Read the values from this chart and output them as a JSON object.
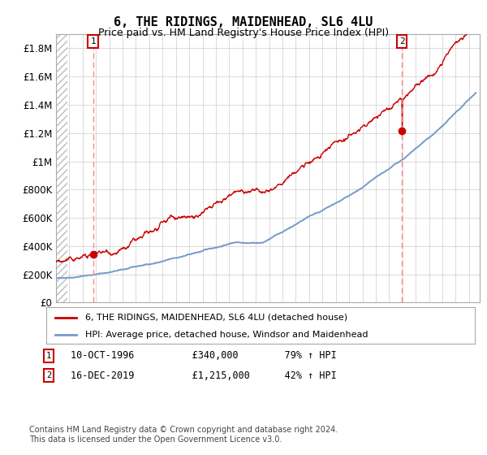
{
  "title": "6, THE RIDINGS, MAIDENHEAD, SL6 4LU",
  "subtitle": "Price paid vs. HM Land Registry's House Price Index (HPI)",
  "ylim": [
    0,
    1900000
  ],
  "yticks": [
    0,
    200000,
    400000,
    600000,
    800000,
    1000000,
    1200000,
    1400000,
    1600000,
    1800000
  ],
  "ytick_labels": [
    "£0",
    "£200K",
    "£400K",
    "£600K",
    "£800K",
    "£1M",
    "£1.2M",
    "£1.4M",
    "£1.6M",
    "£1.8M"
  ],
  "hpi_color": "#7799cc",
  "price_color": "#cc0000",
  "marker_color": "#cc0000",
  "dashed_line_color": "#ff8888",
  "purchase1_date_num": 1996.78,
  "purchase1_price": 340000,
  "purchase2_date_num": 2019.96,
  "purchase2_price": 1215000,
  "legend_line1": "6, THE RIDINGS, MAIDENHEAD, SL6 4LU (detached house)",
  "legend_line2": "HPI: Average price, detached house, Windsor and Maidenhead",
  "note1_box": "1",
  "note1_date": "10-OCT-1996",
  "note1_price": "£340,000",
  "note1_hpi": "79% ↑ HPI",
  "note2_box": "2",
  "note2_date": "16-DEC-2019",
  "note2_price": "£1,215,000",
  "note2_hpi": "42% ↑ HPI",
  "footer": "Contains HM Land Registry data © Crown copyright and database right 2024.\nThis data is licensed under the Open Government Licence v3.0.",
  "bg_color": "#ffffff",
  "grid_color": "#cccccc",
  "xmin": 1994,
  "xmax": 2025.8
}
